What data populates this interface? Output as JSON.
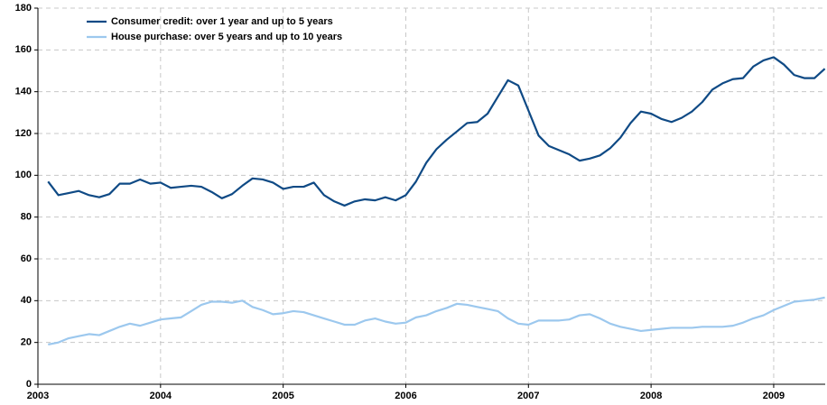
{
  "chart_data": {
    "type": "line",
    "x": [
      2003.083,
      2003.167,
      2003.25,
      2003.333,
      2003.417,
      2003.5,
      2003.583,
      2003.667,
      2003.75,
      2003.833,
      2003.917,
      2004.0,
      2004.083,
      2004.167,
      2004.25,
      2004.333,
      2004.417,
      2004.5,
      2004.583,
      2004.667,
      2004.75,
      2004.833,
      2004.917,
      2005.0,
      2005.083,
      2005.167,
      2005.25,
      2005.333,
      2005.417,
      2005.5,
      2005.583,
      2005.667,
      2005.75,
      2005.833,
      2005.917,
      2006.0,
      2006.083,
      2006.167,
      2006.25,
      2006.333,
      2006.417,
      2006.5,
      2006.583,
      2006.667,
      2006.75,
      2006.833,
      2006.917,
      2007.0,
      2007.083,
      2007.167,
      2007.25,
      2007.333,
      2007.417,
      2007.5,
      2007.583,
      2007.667,
      2007.75,
      2007.833,
      2007.917,
      2008.0,
      2008.083,
      2008.167,
      2008.25,
      2008.333,
      2008.417,
      2008.5,
      2008.583,
      2008.667,
      2008.75,
      2008.833,
      2008.917,
      2009.0,
      2009.083,
      2009.167,
      2009.25,
      2009.333,
      2009.417
    ],
    "series": [
      {
        "name": "Consumer credit: over 1 year and up to 5 years",
        "color": "#0f4a85",
        "values": [
          97,
          90.5,
          91.5,
          92.5,
          90.5,
          89.5,
          91,
          96,
          96,
          98,
          96,
          96.5,
          94,
          94.5,
          95,
          94.5,
          92,
          89,
          91,
          95,
          98.5,
          98,
          96.5,
          93.5,
          94.5,
          94.5,
          96.5,
          90.5,
          87.5,
          85.5,
          87.5,
          88.5,
          88,
          89.5,
          88,
          90.5,
          97,
          106,
          112.5,
          117,
          121,
          125,
          125.5,
          129.5,
          137.5,
          145.5,
          143,
          131,
          119,
          114,
          112,
          110,
          107,
          108,
          109.5,
          113,
          118,
          125,
          130.5,
          129.5,
          127,
          125.5,
          127.5,
          130.5,
          135,
          141,
          144,
          146,
          146.5,
          152,
          155,
          156.5,
          153,
          148,
          146.5,
          146.5,
          151
        ]
      },
      {
        "name": "House purchase: over 5 years and up to 10 years",
        "color": "#9cc8ee",
        "values": [
          19,
          20,
          22,
          23,
          24,
          23.5,
          25.5,
          27.5,
          29,
          28,
          29.5,
          31,
          31.5,
          32,
          35,
          38,
          39.5,
          39.5,
          39,
          40,
          37,
          35.5,
          33.5,
          34,
          35,
          34.5,
          33,
          31.5,
          30,
          28.5,
          28.5,
          30.5,
          31.5,
          30,
          29,
          29.5,
          32,
          33,
          35,
          36.5,
          38.5,
          38,
          37,
          36,
          35,
          31.5,
          29,
          28.5,
          30.5,
          30.5,
          30.5,
          31,
          33,
          33.5,
          31.5,
          29,
          27.5,
          26.5,
          25.5,
          26,
          26.5,
          27,
          27,
          27,
          27.5,
          27.5,
          27.5,
          28,
          29.5,
          31.5,
          33,
          35.5,
          37.5,
          39.5,
          40,
          40.5,
          41.5
        ]
      }
    ],
    "xlim": [
      2003,
      2009.42
    ],
    "xticks": [
      2003,
      2004,
      2005,
      2006,
      2007,
      2008,
      2009
    ],
    "ylim": [
      0,
      180
    ],
    "yticks": [
      0,
      20,
      40,
      60,
      80,
      100,
      120,
      140,
      160,
      180
    ],
    "grid": true,
    "legend": "upper left"
  }
}
